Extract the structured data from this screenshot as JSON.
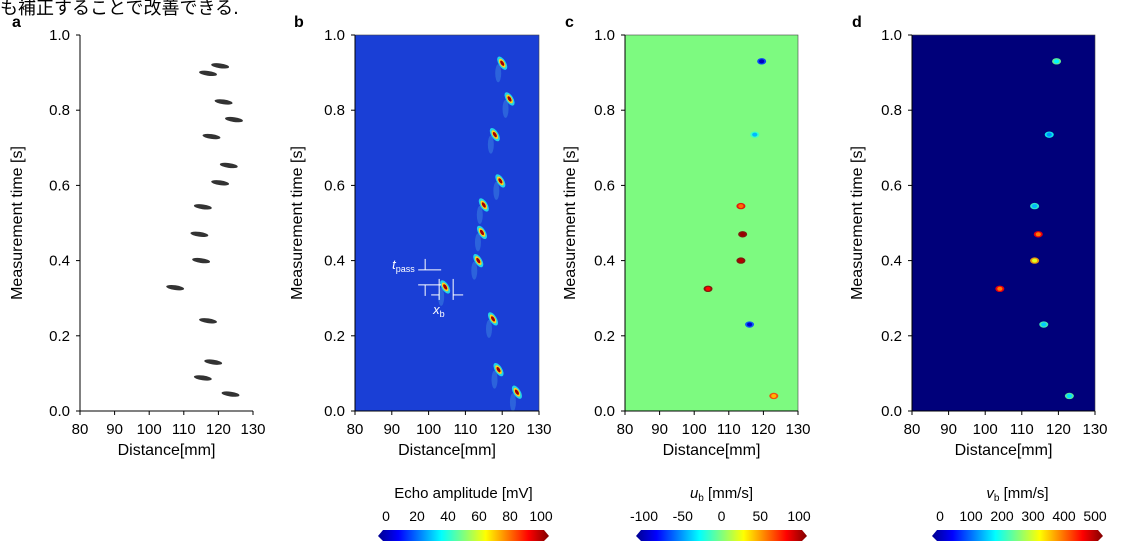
{
  "header_text": "も補正することで改善できる.",
  "panels": [
    {
      "letter": "a",
      "kind": "echo-bw",
      "xlabel": "Distance[mm]",
      "ylabel": "Measurement time [s]",
      "xticks": [
        "80",
        "90",
        "100",
        "110",
        "120",
        "130"
      ],
      "yticks": [
        "0.0",
        "0.2",
        "0.4",
        "0.6",
        "0.8",
        "1.0"
      ],
      "background": "#ffffff",
      "blob_color": "#333333"
    },
    {
      "letter": "b",
      "kind": "echo-color",
      "xlabel": "Distance[mm]",
      "ylabel": "Measurement time [s]",
      "xticks": [
        "80",
        "90",
        "100",
        "110",
        "120",
        "130"
      ],
      "yticks": [
        "0.0",
        "0.2",
        "0.4",
        "0.6",
        "0.8",
        "1.0"
      ],
      "background": "#1a3fd6",
      "annotations": {
        "tpass": "t",
        "tpass_sub": "pass",
        "xb": "x",
        "xb_sub": "b"
      }
    },
    {
      "letter": "c",
      "kind": "ub-map",
      "xlabel": "Distance[mm]",
      "ylabel": "Measurement time [s]",
      "xticks": [
        "80",
        "90",
        "100",
        "110",
        "120",
        "130"
      ],
      "yticks": [
        "0.0",
        "0.2",
        "0.4",
        "0.6",
        "0.8",
        "1.0"
      ],
      "background": "#7dfa80"
    },
    {
      "letter": "d",
      "kind": "vb-map",
      "xlabel": "Distance[mm]",
      "ylabel": "Measurement time [s]",
      "xticks": [
        "80",
        "90",
        "100",
        "110",
        "120",
        "130"
      ],
      "yticks": [
        "0.0",
        "0.2",
        "0.4",
        "0.6",
        "0.8",
        "1.0"
      ],
      "background": "#00007a"
    }
  ],
  "colorbars": [
    {
      "label": "Echo amplitude [mV]",
      "ticks": [
        "0",
        "20",
        "40",
        "60",
        "80",
        "100"
      ]
    },
    {
      "label_sym": "u",
      "label_sub": "b",
      "label_unit": " [mm/s]",
      "ticks": [
        "-100",
        "-50",
        "0",
        "50",
        "100"
      ]
    },
    {
      "label_sym": "v",
      "label_sub": "b",
      "label_unit": " [mm/s]",
      "ticks": [
        "0",
        "100",
        "200",
        "300",
        "400",
        "500"
      ]
    }
  ],
  "chart_data": [
    {
      "type": "scatter",
      "panel": "a",
      "title": "",
      "xlabel": "Distance[mm]",
      "ylabel": "Measurement time [s]",
      "xlim": [
        80,
        130
      ],
      "ylim": [
        0.0,
        1.0
      ],
      "points": [
        {
          "x": 123.5,
          "y": 0.045
        },
        {
          "x": 115.5,
          "y": 0.088
        },
        {
          "x": 118.5,
          "y": 0.13
        },
        {
          "x": 117.0,
          "y": 0.24
        },
        {
          "x": 107.5,
          "y": 0.328
        },
        {
          "x": 115.0,
          "y": 0.4
        },
        {
          "x": 114.5,
          "y": 0.47
        },
        {
          "x": 115.5,
          "y": 0.543
        },
        {
          "x": 120.5,
          "y": 0.607
        },
        {
          "x": 123.0,
          "y": 0.653
        },
        {
          "x": 118.0,
          "y": 0.73
        },
        {
          "x": 124.5,
          "y": 0.775
        },
        {
          "x": 121.5,
          "y": 0.822
        },
        {
          "x": 117.0,
          "y": 0.898
        },
        {
          "x": 120.5,
          "y": 0.918
        }
      ]
    },
    {
      "type": "scatter",
      "panel": "b",
      "title": "",
      "xlabel": "Distance[mm]",
      "ylabel": "Measurement time [s]",
      "xlim": [
        80,
        130
      ],
      "ylim": [
        0.0,
        1.0
      ],
      "colorbar": {
        "label": "Echo amplitude [mV]",
        "range": [
          0,
          100
        ]
      },
      "points": [
        {
          "x": 124.0,
          "y": 0.05
        },
        {
          "x": 119.0,
          "y": 0.11
        },
        {
          "x": 117.5,
          "y": 0.245
        },
        {
          "x": 104.5,
          "y": 0.33
        },
        {
          "x": 113.5,
          "y": 0.4
        },
        {
          "x": 114.5,
          "y": 0.475
        },
        {
          "x": 115.0,
          "y": 0.548
        },
        {
          "x": 119.5,
          "y": 0.612
        },
        {
          "x": 118.0,
          "y": 0.735
        },
        {
          "x": 122.0,
          "y": 0.83
        },
        {
          "x": 120.0,
          "y": 0.925
        }
      ]
    },
    {
      "type": "scatter",
      "panel": "c",
      "title": "",
      "xlabel": "Distance[mm]",
      "ylabel": "Measurement time [s]",
      "xlim": [
        80,
        130
      ],
      "ylim": [
        0.0,
        1.0
      ],
      "colorbar": {
        "label": "u_b [mm/s]",
        "range": [
          -100,
          100
        ]
      },
      "points": [
        {
          "x": 119.5,
          "y": 0.93,
          "value": -90
        },
        {
          "x": 117.5,
          "y": 0.735,
          "value": -40
        },
        {
          "x": 113.5,
          "y": 0.545,
          "value": 55
        },
        {
          "x": 114.0,
          "y": 0.47,
          "value": 95
        },
        {
          "x": 113.5,
          "y": 0.4,
          "value": 90
        },
        {
          "x": 104.0,
          "y": 0.325,
          "value": 75
        },
        {
          "x": 116.0,
          "y": 0.23,
          "value": -85
        },
        {
          "x": 123.0,
          "y": 0.04,
          "value": 40
        }
      ]
    },
    {
      "type": "scatter",
      "panel": "d",
      "title": "",
      "xlabel": "Distance[mm]",
      "ylabel": "Measurement time [s]",
      "xlim": [
        80,
        130
      ],
      "ylim": [
        0.0,
        1.0
      ],
      "colorbar": {
        "label": "v_b [mm/s]",
        "range": [
          0,
          500
        ]
      },
      "points": [
        {
          "x": 119.5,
          "y": 0.93,
          "value": 180
        },
        {
          "x": 117.5,
          "y": 0.735,
          "value": 130
        },
        {
          "x": 113.5,
          "y": 0.545,
          "value": 150
        },
        {
          "x": 114.5,
          "y": 0.47,
          "value": 380
        },
        {
          "x": 113.5,
          "y": 0.4,
          "value": 300
        },
        {
          "x": 104.0,
          "y": 0.325,
          "value": 380
        },
        {
          "x": 116.0,
          "y": 0.23,
          "value": 160
        },
        {
          "x": 123.0,
          "y": 0.04,
          "value": 170
        }
      ]
    }
  ]
}
